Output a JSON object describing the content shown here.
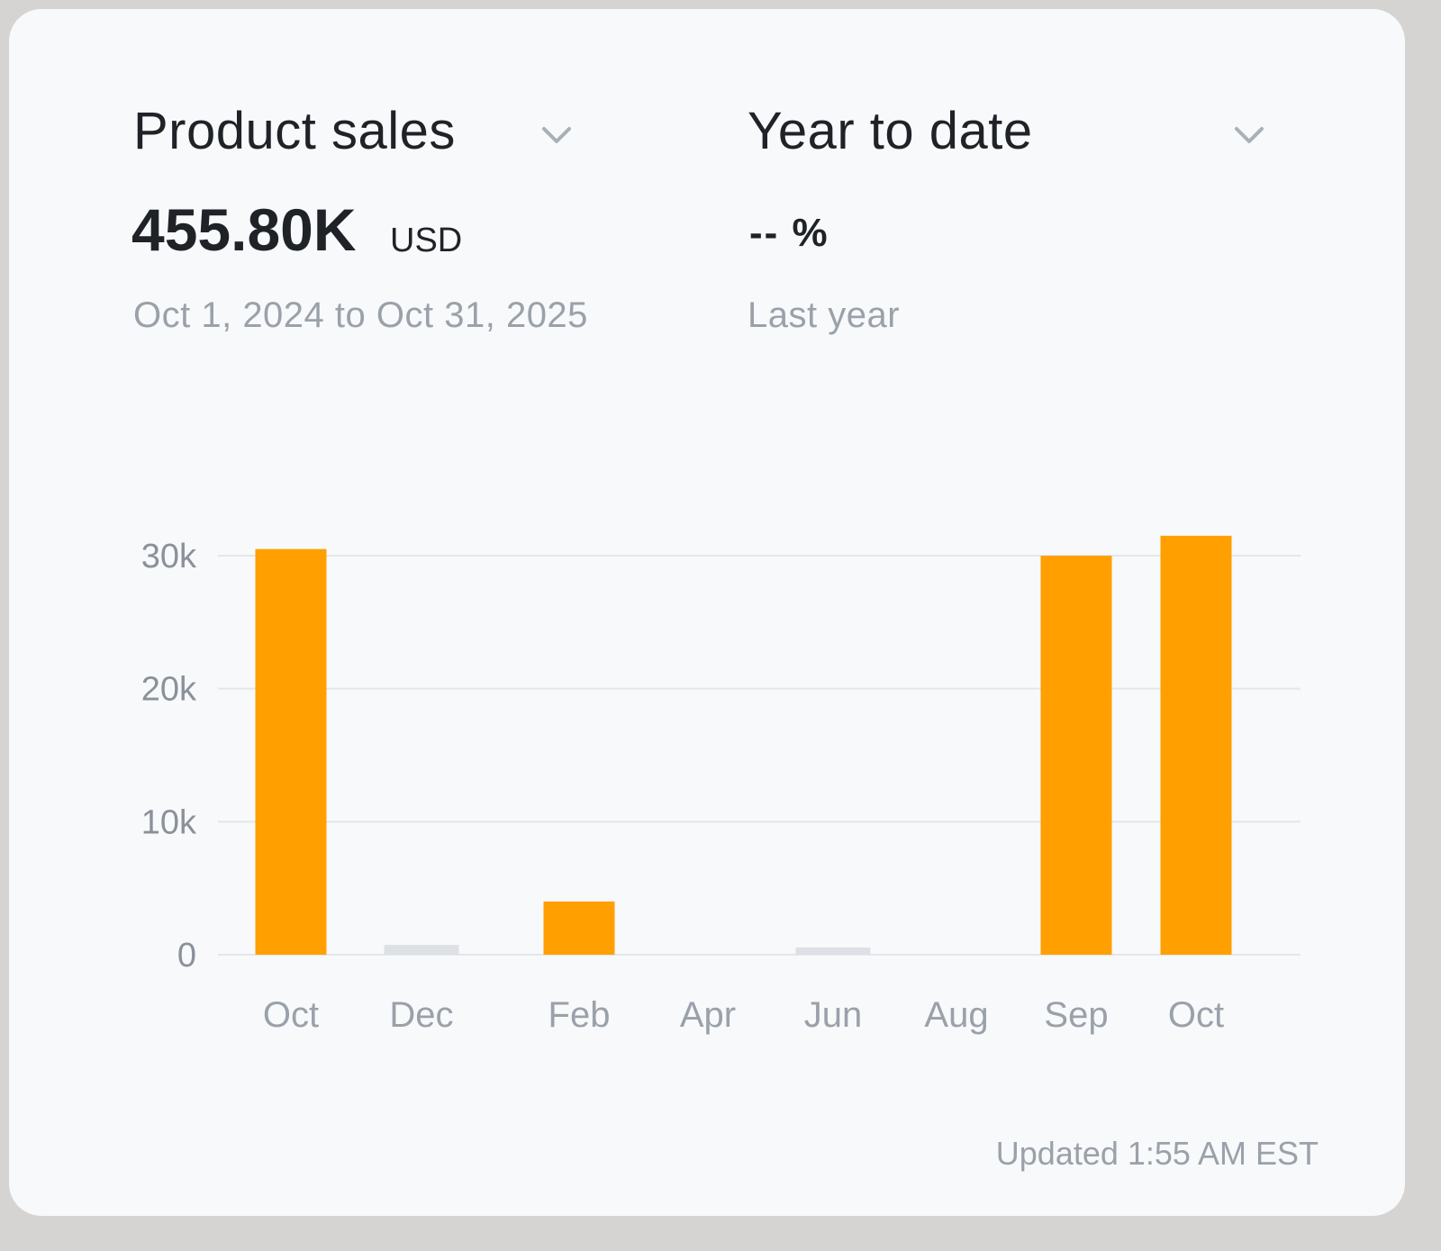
{
  "metric_selector": {
    "label": "Product sales"
  },
  "period_selector": {
    "label": "Year to date"
  },
  "total": {
    "value": "455.80K",
    "unit": "USD",
    "date_range": "Oct 1, 2024 to Oct 31, 2025"
  },
  "comparison": {
    "value": "-- %",
    "label": "Last year"
  },
  "footer": {
    "updated": "Updated 1:55 AM EST"
  },
  "colors": {
    "bar": "#ff9f00",
    "empty_bar": "#dde1e6",
    "grid": "#e3e6ea",
    "tick": "#9aa1aa"
  },
  "chart_data": {
    "type": "bar",
    "categories": [
      "Oct",
      "Dec",
      "Feb",
      "Apr",
      "Jun",
      "Aug",
      "Sep",
      "Oct"
    ],
    "values": [
      30500,
      800,
      4000,
      0,
      500,
      0,
      30000,
      31500
    ],
    "yticks": [
      "0",
      "10k",
      "20k",
      "30k"
    ],
    "ytick_values": [
      0,
      10000,
      20000,
      30000
    ],
    "ylim": [
      0,
      30000
    ],
    "grid": true,
    "title": "",
    "xlabel": "",
    "ylabel": ""
  }
}
